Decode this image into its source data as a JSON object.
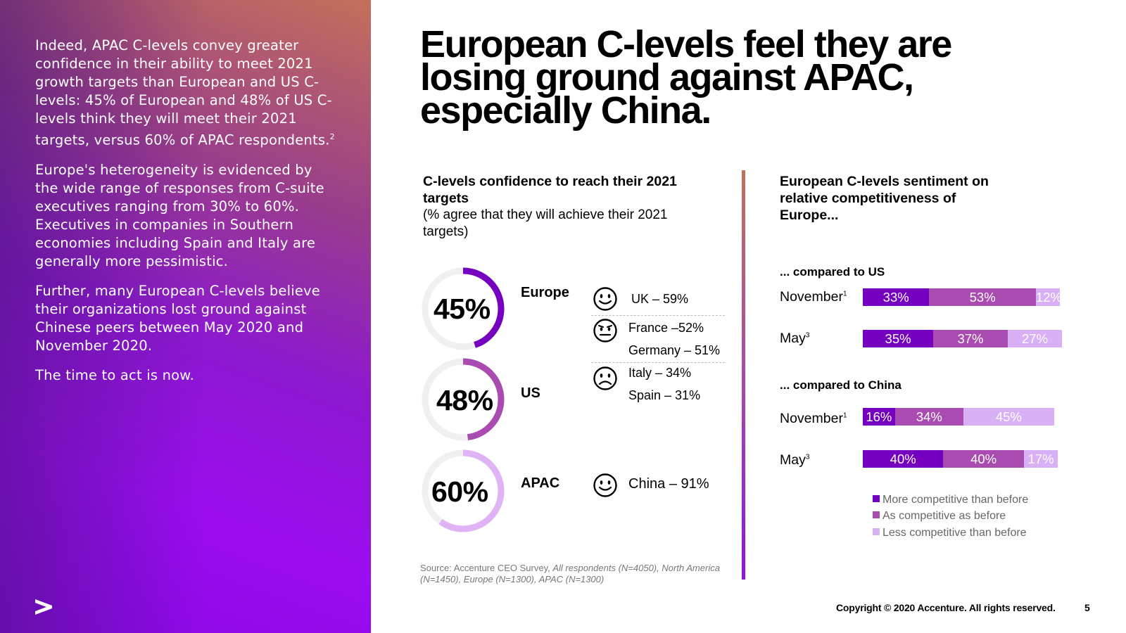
{
  "left_panel": {
    "paragraph_1": "Indeed, APAC C-levels convey greater confidence in their ability to meet 2021 growth targets than European and US C-levels: 45% of European and 48% of US C-levels think they will meet their 2021 targets, versus 60% of APAC respondents.",
    "paragraph_1_sup": "2",
    "paragraph_2": "Europe's heterogeneity is evidenced by the wide range of responses from C-suite executives ranging from 30% to 60%.  Executives in companies in Southern economies including Spain and Italy are generally more pessimistic.",
    "paragraph_3": "Further, many European C-levels believe their organizations lost ground against Chinese peers between May 2020 and November 2020.",
    "paragraph_4": "The time to act is now."
  },
  "headline": "European C-levels feel they are losing ground against APAC, especially China.",
  "confidence": {
    "title": "C-levels confidence to reach their 2021 targets",
    "subtitle": "(% agree that they will achieve their 2021 targets)",
    "regions": [
      {
        "name": "Europe",
        "pct_label": "45%",
        "value": 45,
        "color": "#7500c0"
      },
      {
        "name": "US",
        "pct_label": "48%",
        "value": 48,
        "color": "#a94bb0"
      },
      {
        "name": "APAC",
        "pct_label": "60%",
        "value": 60,
        "color": "#dfb3f5"
      }
    ],
    "countries": {
      "uk": "UK – 59%",
      "france": "France –52%",
      "germany": "Germany – 51%",
      "italy": "Italy – 34%",
      "spain": "Spain – 31%",
      "china": "China – 91%"
    },
    "source_prefix": "Source: Accenture CEO Survey, ",
    "source_italic": "All respondents (N=4050), North America (N=1450), Europe (N=1300), APAC (N=1300)"
  },
  "chart_data": {
    "type": "bar",
    "orientation": "horizontal-stacked",
    "title": "European C-levels sentiment on relative competitiveness of Europe...",
    "groups": [
      {
        "label": "... compared to US",
        "rows": [
          {
            "label": "November",
            "sup": "1",
            "values": [
              33,
              53,
              12
            ],
            "labels": [
              "33%",
              "53%",
              "12%"
            ]
          },
          {
            "label": "May",
            "sup": "3",
            "values": [
              35,
              37,
              27
            ],
            "labels": [
              "35%",
              "37%",
              "27%"
            ]
          }
        ]
      },
      {
        "label": "... compared to China",
        "rows": [
          {
            "label": "November",
            "sup": "1",
            "values": [
              16,
              34,
              45
            ],
            "labels": [
              "16%",
              "34%",
              "45%"
            ]
          },
          {
            "label": "May",
            "sup": "3",
            "values": [
              40,
              40,
              17
            ],
            "labels": [
              "40%",
              "40%",
              "17%"
            ]
          }
        ]
      }
    ],
    "series": [
      {
        "name": "More competitive than before",
        "color": "#7500c0"
      },
      {
        "name": "As competitive as before",
        "color": "#a94bb0"
      },
      {
        "name": "Less competitive than before",
        "color": "#d9b0f5"
      }
    ],
    "legend_position": "bottom-right"
  },
  "footer": {
    "copyright": "Copyright © 2020 Accenture. All rights reserved.",
    "page_number": "5"
  }
}
